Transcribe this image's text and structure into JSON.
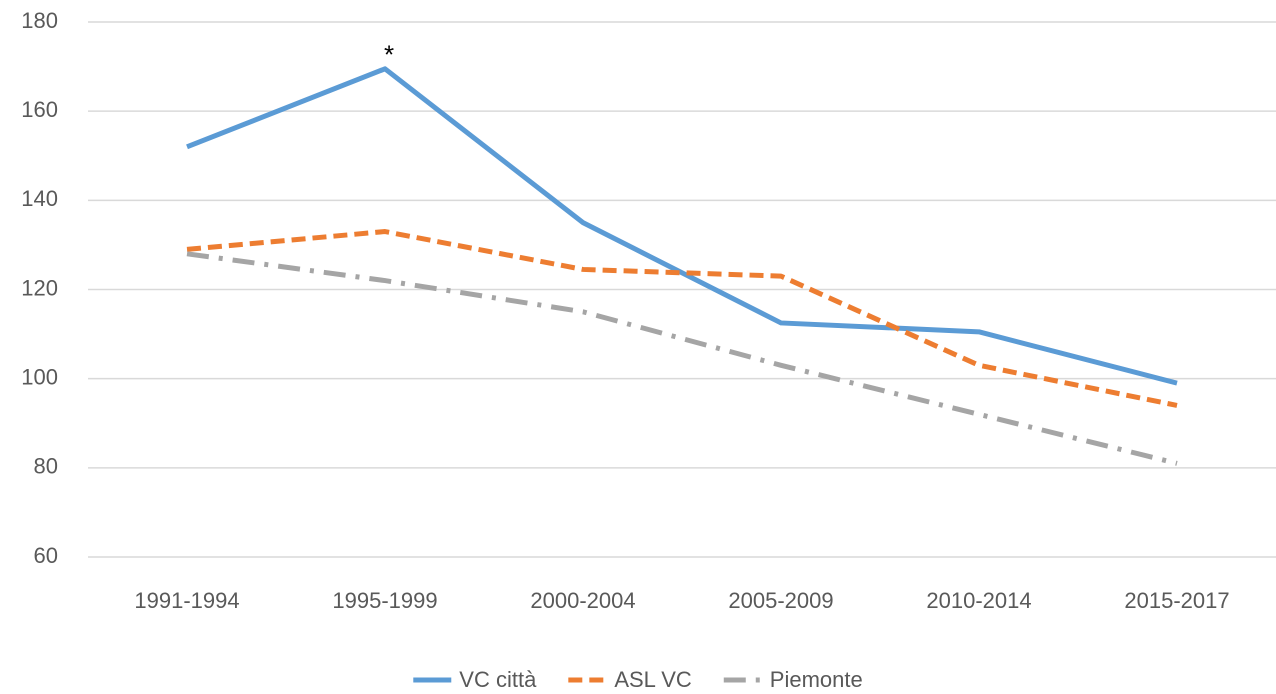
{
  "chart_data": {
    "type": "line",
    "categories": [
      "1991-1994",
      "1995-1999",
      "2000-2004",
      "2005-2009",
      "2010-2014",
      "2015-2017"
    ],
    "series": [
      {
        "name": "VC città",
        "color": "#5b9bd5",
        "style": "solid",
        "values": [
          152,
          169.5,
          135,
          112.5,
          110.5,
          99
        ]
      },
      {
        "name": "ASL VC",
        "color": "#ed7d31",
        "style": "dashed",
        "values": [
          129,
          133,
          124.5,
          123,
          103,
          94
        ]
      },
      {
        "name": "Piemonte",
        "color": "#a5a5a5",
        "style": "dashdot",
        "values": [
          128,
          122,
          115,
          103,
          92,
          81
        ]
      }
    ],
    "annotations": [
      {
        "text": "*",
        "x": "1995-1999"
      }
    ],
    "ylim": [
      60,
      180
    ],
    "yticks": [
      60,
      80,
      100,
      120,
      140,
      160,
      180
    ],
    "grid": true,
    "legend": "bottom"
  }
}
